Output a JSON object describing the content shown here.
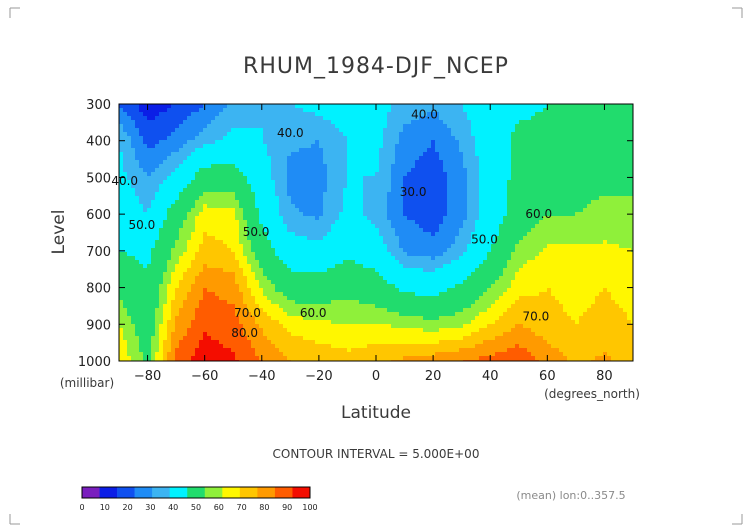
{
  "chart_data": {
    "type": "heatmap",
    "subtype": "filled-contour",
    "title": "RHUM_1984-DJF_NCEP",
    "xlabel": "Latitude",
    "x_units": "(degrees_north)",
    "ylabel": "Level",
    "y_units": "(millibar)",
    "xlim": [
      -90,
      90
    ],
    "ylim": [
      1000,
      300
    ],
    "x_ticks": [
      -80,
      -60,
      -40,
      -20,
      0,
      20,
      40,
      60,
      80
    ],
    "y_ticks": [
      300,
      400,
      500,
      600,
      700,
      800,
      900,
      1000
    ],
    "y_inverted": true,
    "contour_interval_text": "CONTOUR INTERVAL = 5.000E+00",
    "footnote": "(mean) lon:0..357.5",
    "contour_labels": [
      {
        "text": "40.0",
        "lat": -30,
        "level": 390
      },
      {
        "text": "40.0",
        "lat": 17,
        "level": 340
      },
      {
        "text": "40.0",
        "lat": -88,
        "level": 520
      },
      {
        "text": "30.0",
        "lat": 13,
        "level": 550
      },
      {
        "text": "50.0",
        "lat": -82,
        "level": 640
      },
      {
        "text": "50.0",
        "lat": -42,
        "level": 660
      },
      {
        "text": "50.0",
        "lat": 38,
        "level": 680
      },
      {
        "text": "60.0",
        "lat": 57,
        "level": 610
      },
      {
        "text": "60.0",
        "lat": -22,
        "level": 880
      },
      {
        "text": "70.0",
        "lat": -45,
        "level": 880
      },
      {
        "text": "70.0",
        "lat": 56,
        "level": 890
      },
      {
        "text": "80.0",
        "lat": -46,
        "level": 935
      }
    ],
    "colorbar": {
      "bounds": [
        0,
        10,
        20,
        30,
        40,
        50,
        60,
        70,
        80,
        90,
        100
      ],
      "tick_labels": [
        "0",
        "10",
        "20",
        "30",
        "40",
        "50",
        "60",
        "70",
        "80",
        "90",
        "100"
      ],
      "colors": [
        "#7a1fbe",
        "#0b1ee6",
        "#0f50ef",
        "#1f8cf5",
        "#3cb4f2",
        "#00f2ff",
        "#21dc6d",
        "#8ff03a",
        "#fff700",
        "#ffc600",
        "#ff9a00",
        "#ff5c00",
        "#f40d00"
      ]
    },
    "band_colors": {
      "0-25": "#0b1ee6",
      "25-30": "#0f50ef",
      "30-35": "#1f8cf5",
      "35-40": "#3cb4f2",
      "40-45": "#00f2ff",
      "45-50": "#00f2ff",
      "50-55": "#21dc6d",
      "55-60": "#21dc6d",
      "60-65": "#8ff03a",
      "65-70": "#fff700",
      "70-75": "#ffc600",
      "75-80": "#ff9a00",
      "80-85": "#ff5c00",
      "85-100": "#f40d00"
    },
    "field_levels": [
      300,
      400,
      500,
      600,
      700,
      800,
      900,
      1000
    ],
    "field_lats": [
      -90,
      -80,
      -70,
      -60,
      -50,
      -40,
      -30,
      -20,
      -10,
      0,
      10,
      20,
      30,
      40,
      50,
      60,
      70,
      80,
      90
    ],
    "field": [
      [
        30,
        22,
        25,
        30,
        36,
        40,
        40,
        42,
        45,
        43,
        38,
        36,
        40,
        46,
        48,
        50,
        50,
        50,
        50
      ],
      [
        40,
        28,
        32,
        38,
        42,
        40,
        36,
        35,
        40,
        42,
        33,
        30,
        36,
        45,
        52,
        52,
        54,
        54,
        55
      ],
      [
        42,
        35,
        42,
        55,
        55,
        44,
        33,
        33,
        40,
        40,
        30,
        27,
        33,
        44,
        53,
        56,
        57,
        58,
        58
      ],
      [
        46,
        40,
        55,
        68,
        67,
        48,
        36,
        34,
        42,
        38,
        30,
        27,
        33,
        44,
        55,
        60,
        60,
        62,
        62
      ],
      [
        50,
        48,
        62,
        72,
        70,
        55,
        44,
        42,
        48,
        44,
        34,
        32,
        38,
        50,
        62,
        66,
        66,
        66,
        65
      ],
      [
        58,
        52,
        70,
        80,
        78,
        64,
        55,
        55,
        58,
        55,
        48,
        46,
        52,
        60,
        68,
        70,
        68,
        70,
        68
      ],
      [
        65,
        55,
        76,
        84,
        82,
        74,
        68,
        66,
        65,
        65,
        64,
        62,
        64,
        70,
        75,
        72,
        70,
        72,
        70
      ],
      [
        70,
        58,
        82,
        88,
        86,
        80,
        75,
        74,
        72,
        74,
        76,
        78,
        80,
        82,
        84,
        78,
        74,
        76,
        72
      ]
    ]
  }
}
